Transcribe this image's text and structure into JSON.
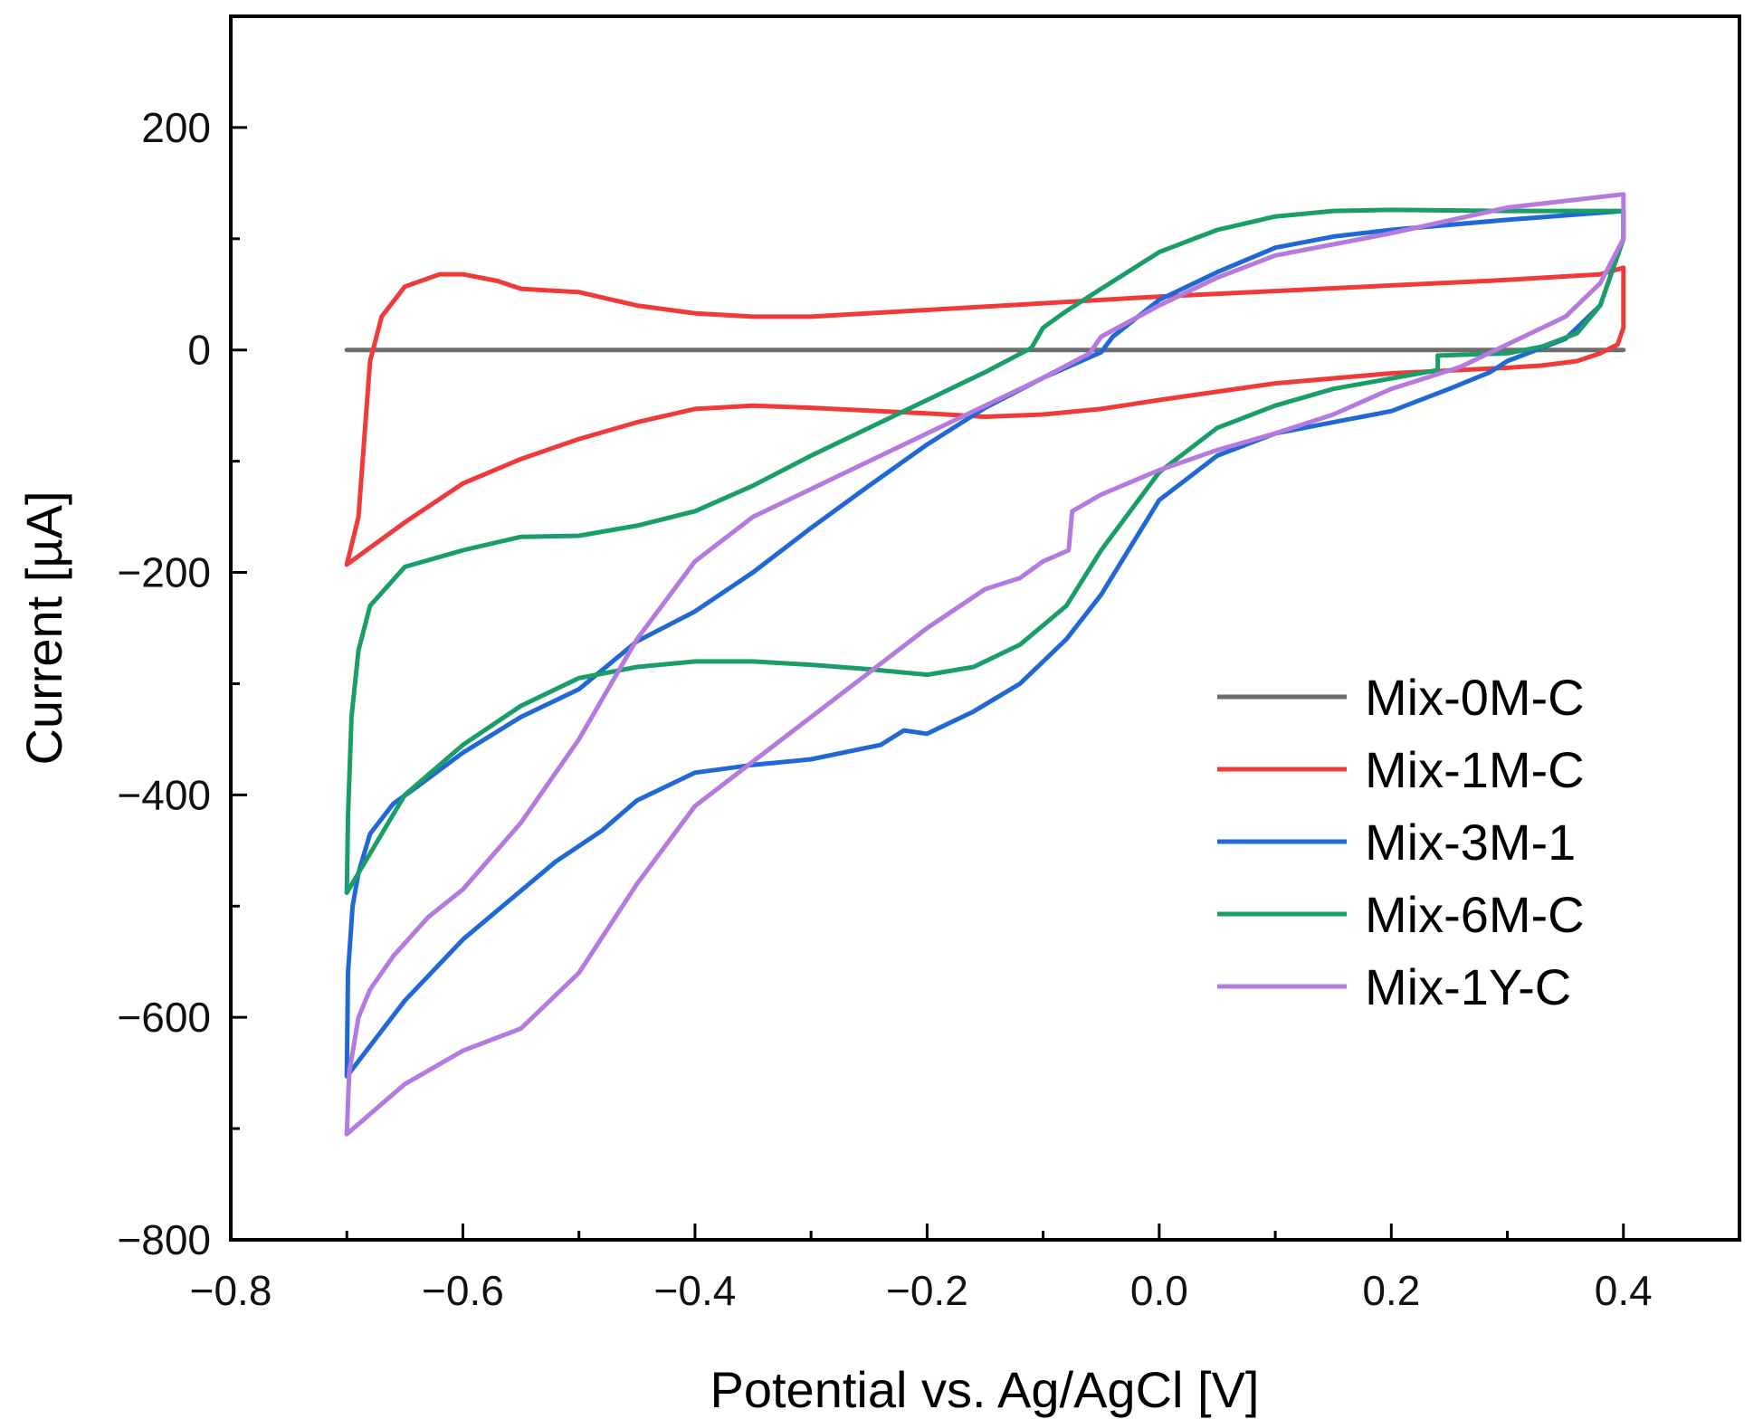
{
  "chart_data": {
    "type": "line",
    "title": "",
    "xlabel": "Potential vs. Ag/AgCl [V]",
    "ylabel": "Current [µA]",
    "xlim": [
      -0.8,
      0.5
    ],
    "ylim": [
      -800,
      300
    ],
    "x_ticks": [
      -0.8,
      -0.6,
      -0.4,
      -0.2,
      0.0,
      0.2,
      0.4
    ],
    "x_tick_labels": [
      "−0.8",
      "−0.6",
      "−0.4",
      "−0.2",
      "0.0",
      "0.2",
      "0.4"
    ],
    "y_ticks": [
      200,
      0,
      -200,
      -400,
      -600,
      -800
    ],
    "y_tick_labels": [
      "200",
      "0",
      "−200",
      "−400",
      "−600",
      "−800"
    ],
    "legend_position": "bottom-right",
    "series": [
      {
        "name": "Mix-0M-C",
        "color": "#6e6e6e",
        "points": [
          [
            -0.7,
            0
          ],
          [
            0.4,
            0
          ]
        ]
      },
      {
        "name": "Mix-1M-C",
        "color": "#f03a3a",
        "points": [
          [
            -0.7,
            -193
          ],
          [
            -0.69,
            -150
          ],
          [
            -0.685,
            -80
          ],
          [
            -0.68,
            -10
          ],
          [
            -0.67,
            30
          ],
          [
            -0.65,
            57
          ],
          [
            -0.62,
            68
          ],
          [
            -0.6,
            68
          ],
          [
            -0.57,
            62
          ],
          [
            -0.55,
            55
          ],
          [
            -0.5,
            52
          ],
          [
            -0.45,
            40
          ],
          [
            -0.4,
            33
          ],
          [
            -0.35,
            30
          ],
          [
            -0.3,
            30
          ],
          [
            -0.2,
            36
          ],
          [
            -0.1,
            42
          ],
          [
            0.0,
            48
          ],
          [
            0.1,
            53
          ],
          [
            0.2,
            58
          ],
          [
            0.3,
            63
          ],
          [
            0.38,
            68
          ],
          [
            0.4,
            74
          ],
          [
            0.4,
            20
          ],
          [
            0.395,
            5
          ],
          [
            0.38,
            -3
          ],
          [
            0.36,
            -10
          ],
          [
            0.33,
            -14
          ],
          [
            0.3,
            -16
          ],
          [
            0.2,
            -21
          ],
          [
            0.1,
            -30
          ],
          [
            0.0,
            -45
          ],
          [
            -0.05,
            -53
          ],
          [
            -0.1,
            -58
          ],
          [
            -0.15,
            -60
          ],
          [
            -0.2,
            -57
          ],
          [
            -0.3,
            -52
          ],
          [
            -0.35,
            -50
          ],
          [
            -0.4,
            -53
          ],
          [
            -0.45,
            -65
          ],
          [
            -0.5,
            -80
          ],
          [
            -0.55,
            -98
          ],
          [
            -0.6,
            -120
          ],
          [
            -0.65,
            -155
          ],
          [
            -0.7,
            -193
          ]
        ]
      },
      {
        "name": "Mix-3M-1",
        "color": "#1f68d6",
        "points": [
          [
            -0.7,
            -653
          ],
          [
            -0.699,
            -560
          ],
          [
            -0.695,
            -500
          ],
          [
            -0.69,
            -470
          ],
          [
            -0.68,
            -435
          ],
          [
            -0.66,
            -408
          ],
          [
            -0.64,
            -393
          ],
          [
            -0.6,
            -362
          ],
          [
            -0.55,
            -330
          ],
          [
            -0.5,
            -305
          ],
          [
            -0.45,
            -262
          ],
          [
            -0.4,
            -235
          ],
          [
            -0.35,
            -200
          ],
          [
            -0.3,
            -160
          ],
          [
            -0.25,
            -122
          ],
          [
            -0.2,
            -85
          ],
          [
            -0.15,
            -52
          ],
          [
            -0.1,
            -25
          ],
          [
            -0.05,
            -2
          ],
          [
            -0.04,
            12
          ],
          [
            0.0,
            45
          ],
          [
            0.05,
            70
          ],
          [
            0.1,
            92
          ],
          [
            0.15,
            102
          ],
          [
            0.2,
            108
          ],
          [
            0.3,
            117
          ],
          [
            0.4,
            125
          ],
          [
            0.4,
            100
          ],
          [
            0.38,
            40
          ],
          [
            0.35,
            10
          ],
          [
            0.3,
            -10
          ],
          [
            0.285,
            -20
          ],
          [
            0.25,
            -35
          ],
          [
            0.2,
            -55
          ],
          [
            0.15,
            -65
          ],
          [
            0.1,
            -75
          ],
          [
            0.05,
            -95
          ],
          [
            0.0,
            -135
          ],
          [
            -0.05,
            -220
          ],
          [
            -0.08,
            -260
          ],
          [
            -0.12,
            -300
          ],
          [
            -0.16,
            -325
          ],
          [
            -0.2,
            -345
          ],
          [
            -0.22,
            -342
          ],
          [
            -0.24,
            -355
          ],
          [
            -0.3,
            -368
          ],
          [
            -0.35,
            -373
          ],
          [
            -0.4,
            -380
          ],
          [
            -0.45,
            -405
          ],
          [
            -0.48,
            -432
          ],
          [
            -0.52,
            -460
          ],
          [
            -0.6,
            -530
          ],
          [
            -0.65,
            -585
          ],
          [
            -0.7,
            -653
          ]
        ]
      },
      {
        "name": "Mix-6M-C",
        "color": "#1a9e68",
        "points": [
          [
            -0.7,
            -488
          ],
          [
            -0.699,
            -420
          ],
          [
            -0.696,
            -330
          ],
          [
            -0.69,
            -270
          ],
          [
            -0.68,
            -230
          ],
          [
            -0.65,
            -195
          ],
          [
            -0.6,
            -180
          ],
          [
            -0.55,
            -168
          ],
          [
            -0.5,
            -167
          ],
          [
            -0.45,
            -158
          ],
          [
            -0.4,
            -145
          ],
          [
            -0.35,
            -122
          ],
          [
            -0.3,
            -95
          ],
          [
            -0.25,
            -70
          ],
          [
            -0.2,
            -45
          ],
          [
            -0.15,
            -20
          ],
          [
            -0.11,
            2
          ],
          [
            -0.1,
            20
          ],
          [
            -0.08,
            35
          ],
          [
            -0.05,
            55
          ],
          [
            0.0,
            88
          ],
          [
            0.05,
            108
          ],
          [
            0.1,
            120
          ],
          [
            0.15,
            125
          ],
          [
            0.2,
            126
          ],
          [
            0.3,
            125
          ],
          [
            0.4,
            125
          ],
          [
            0.4,
            100
          ],
          [
            0.38,
            40
          ],
          [
            0.36,
            15
          ],
          [
            0.33,
            3
          ],
          [
            0.3,
            -3
          ],
          [
            0.24,
            -5
          ],
          [
            0.24,
            -18
          ],
          [
            0.15,
            -35
          ],
          [
            0.1,
            -50
          ],
          [
            0.05,
            -70
          ],
          [
            0.0,
            -110
          ],
          [
            -0.05,
            -180
          ],
          [
            -0.08,
            -230
          ],
          [
            -0.12,
            -265
          ],
          [
            -0.16,
            -285
          ],
          [
            -0.2,
            -292
          ],
          [
            -0.25,
            -287
          ],
          [
            -0.3,
            -283
          ],
          [
            -0.35,
            -280
          ],
          [
            -0.4,
            -280
          ],
          [
            -0.45,
            -285
          ],
          [
            -0.5,
            -295
          ],
          [
            -0.55,
            -320
          ],
          [
            -0.6,
            -355
          ],
          [
            -0.65,
            -400
          ],
          [
            -0.7,
            -488
          ]
        ]
      },
      {
        "name": "Mix-1Y-C",
        "color": "#b47ae0",
        "points": [
          [
            -0.7,
            -705
          ],
          [
            -0.698,
            -650
          ],
          [
            -0.69,
            -600
          ],
          [
            -0.68,
            -575
          ],
          [
            -0.66,
            -545
          ],
          [
            -0.63,
            -510
          ],
          [
            -0.6,
            -485
          ],
          [
            -0.55,
            -425
          ],
          [
            -0.5,
            -350
          ],
          [
            -0.45,
            -260
          ],
          [
            -0.4,
            -190
          ],
          [
            -0.35,
            -150
          ],
          [
            -0.3,
            -125
          ],
          [
            -0.25,
            -100
          ],
          [
            -0.2,
            -75
          ],
          [
            -0.15,
            -50
          ],
          [
            -0.1,
            -25
          ],
          [
            -0.06,
            -3
          ],
          [
            -0.05,
            12
          ],
          [
            0.0,
            40
          ],
          [
            0.05,
            65
          ],
          [
            0.1,
            85
          ],
          [
            0.15,
            95
          ],
          [
            0.2,
            105
          ],
          [
            0.3,
            128
          ],
          [
            0.4,
            140
          ],
          [
            0.4,
            100
          ],
          [
            0.38,
            60
          ],
          [
            0.35,
            30
          ],
          [
            0.3,
            5
          ],
          [
            0.28,
            -5
          ],
          [
            0.26,
            -15
          ],
          [
            0.2,
            -35
          ],
          [
            0.15,
            -58
          ],
          [
            0.1,
            -75
          ],
          [
            0.05,
            -90
          ],
          [
            0.0,
            -108
          ],
          [
            -0.05,
            -130
          ],
          [
            -0.075,
            -145
          ],
          [
            -0.078,
            -180
          ],
          [
            -0.1,
            -190
          ],
          [
            -0.12,
            -205
          ],
          [
            -0.15,
            -215
          ],
          [
            -0.2,
            -250
          ],
          [
            -0.25,
            -290
          ],
          [
            -0.3,
            -330
          ],
          [
            -0.35,
            -370
          ],
          [
            -0.4,
            -410
          ],
          [
            -0.45,
            -480
          ],
          [
            -0.5,
            -560
          ],
          [
            -0.55,
            -610
          ],
          [
            -0.6,
            -630
          ],
          [
            -0.65,
            -660
          ],
          [
            -0.7,
            -705
          ]
        ]
      }
    ]
  }
}
